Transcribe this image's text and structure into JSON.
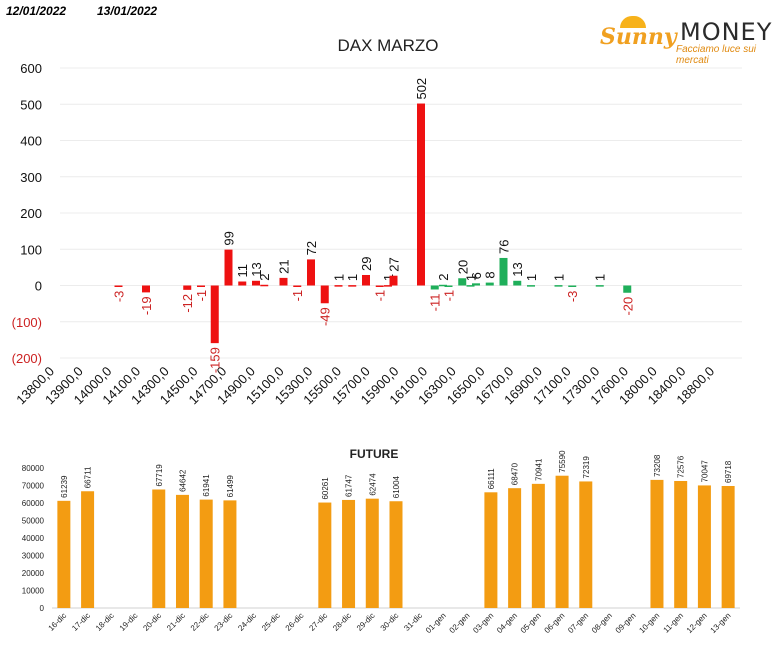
{
  "header": {
    "date1": "12/01/2022",
    "date2": "13/01/2022"
  },
  "logo": {
    "word1": "Sunny",
    "word2": "MONEY",
    "tagline": "Facciamo luce sui mercati"
  },
  "colors": {
    "positive": "#ee1111",
    "negative_label": "#cc2222",
    "green": "#1faf5a",
    "future_bar": "#f39c12"
  },
  "chart_data": [
    {
      "type": "bar",
      "title": "DAX MARZO",
      "ylim": [
        -200,
        600
      ],
      "yticks": [
        {
          "v": 600,
          "label": "600"
        },
        {
          "v": 500,
          "label": "500"
        },
        {
          "v": 400,
          "label": "400"
        },
        {
          "v": 300,
          "label": "300"
        },
        {
          "v": 200,
          "label": "200"
        },
        {
          "v": 100,
          "label": "100"
        },
        {
          "v": 0,
          "label": "0"
        },
        {
          "v": -100,
          "label": "(100)"
        },
        {
          "v": -200,
          "label": "(200)"
        }
      ],
      "xticks": [
        "13800,0",
        "13900,0",
        "14000,0",
        "14100,0",
        "14300,0",
        "14500,0",
        "14700,0",
        "14900,0",
        "15100,0",
        "15300,0",
        "15500,0",
        "15700,0",
        "15900,0",
        "16100,0",
        "16300,0",
        "16500,0",
        "16700,0",
        "16900,0",
        "17100,0",
        "17300,0",
        "17600,0",
        "18000,0",
        "18400,0",
        "18800,0"
      ],
      "bars": [
        {
          "slot": 2,
          "value": -3,
          "label": "-3",
          "color": "red"
        },
        {
          "slot": 4,
          "value": -19,
          "label": "-19",
          "color": "red"
        },
        {
          "slot": 7,
          "value": -12,
          "label": "-12",
          "color": "red"
        },
        {
          "slot": 8,
          "value": -1,
          "label": "-1",
          "color": "red"
        },
        {
          "slot": 9,
          "value": -159,
          "label": "-159",
          "color": "red"
        },
        {
          "slot": 10,
          "value": 99,
          "label": "99",
          "color": "red"
        },
        {
          "slot": 11,
          "value": 11,
          "label": "11",
          "color": "red"
        },
        {
          "slot": 12,
          "value": 13,
          "label": "13",
          "color": "red"
        },
        {
          "slot": 12.6,
          "value": 2,
          "label": "2",
          "color": "red"
        },
        {
          "slot": 14,
          "value": 21,
          "label": "21",
          "color": "red"
        },
        {
          "slot": 15,
          "value": -1,
          "label": "-1",
          "color": "red"
        },
        {
          "slot": 16,
          "value": 72,
          "label": "72",
          "color": "red"
        },
        {
          "slot": 17,
          "value": -49,
          "label": "-49",
          "color": "red"
        },
        {
          "slot": 18,
          "value": 1,
          "label": "1",
          "color": "red"
        },
        {
          "slot": 19,
          "value": 1,
          "label": "1",
          "color": "red"
        },
        {
          "slot": 20,
          "value": 29,
          "label": "29",
          "color": "red"
        },
        {
          "slot": 21,
          "value": -1,
          "label": "-1",
          "color": "red"
        },
        {
          "slot": 21.6,
          "value": 1,
          "label": "1",
          "color": "red"
        },
        {
          "slot": 22,
          "value": 27,
          "label": "27",
          "color": "red"
        },
        {
          "slot": 24,
          "value": 502,
          "label": "502",
          "color": "red"
        },
        {
          "slot": 25,
          "value": -11,
          "label": "-11",
          "color": "green"
        },
        {
          "slot": 25.6,
          "value": 2,
          "label": "2",
          "color": "green"
        },
        {
          "slot": 26,
          "value": -1,
          "label": "-1",
          "color": "green"
        },
        {
          "slot": 27,
          "value": 20,
          "label": "20",
          "color": "green"
        },
        {
          "slot": 27.6,
          "value": 1,
          "label": "1",
          "color": "green"
        },
        {
          "slot": 28,
          "value": 6,
          "label": "6",
          "color": "green"
        },
        {
          "slot": 29,
          "value": 8,
          "label": "8",
          "color": "green"
        },
        {
          "slot": 30,
          "value": 76,
          "label": "76",
          "color": "green"
        },
        {
          "slot": 31,
          "value": 13,
          "label": "13",
          "color": "green"
        },
        {
          "slot": 32,
          "value": 1,
          "label": "1",
          "color": "green"
        },
        {
          "slot": 34,
          "value": 1,
          "label": "1",
          "color": "green"
        },
        {
          "slot": 35,
          "value": -3,
          "label": "-3",
          "color": "green"
        },
        {
          "slot": 37,
          "value": 1,
          "label": "1",
          "color": "green"
        },
        {
          "slot": 39,
          "value": -20,
          "label": "-20",
          "color": "green"
        }
      ]
    },
    {
      "type": "bar",
      "title": "FUTURE",
      "ylim": [
        0,
        80000
      ],
      "yticks": [
        0,
        10000,
        20000,
        30000,
        40000,
        50000,
        60000,
        70000,
        80000
      ],
      "categories": [
        "16-dic",
        "17-dic",
        "18-dic",
        "19-dic",
        "20-dic",
        "21-dic",
        "22-dic",
        "23-dic",
        "24-dic",
        "25-dic",
        "26-dic",
        "27-dic",
        "28-dic",
        "29-dic",
        "30-dic",
        "31-dic",
        "01-gen",
        "02-gen",
        "03-gen",
        "04-gen",
        "05-gen",
        "06-gen",
        "07-gen",
        "08-gen",
        "09-gen",
        "10-gen",
        "11-gen",
        "12-gen",
        "13-gen"
      ],
      "values": [
        61239,
        66711,
        null,
        null,
        67719,
        64642,
        61941,
        61499,
        null,
        null,
        null,
        60261,
        61747,
        62474,
        61004,
        null,
        null,
        null,
        66111,
        68470,
        70941,
        75590,
        72319,
        null,
        null,
        73208,
        72576,
        70047,
        69718
      ]
    }
  ]
}
